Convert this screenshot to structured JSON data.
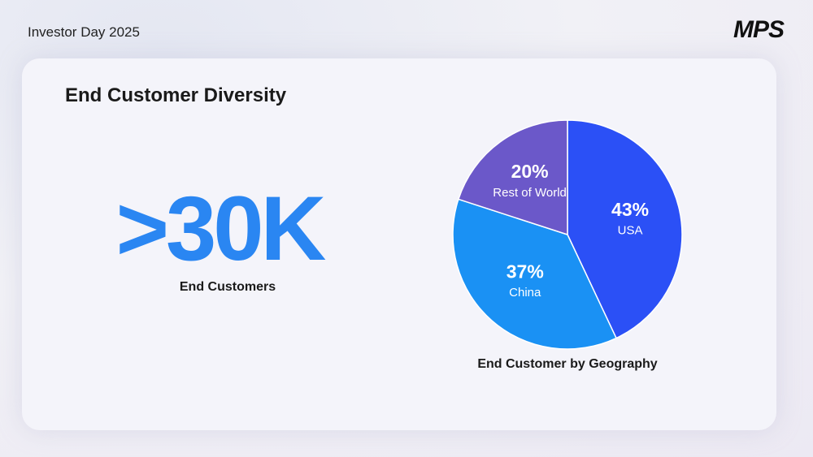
{
  "header": {
    "event": "Investor Day 2025",
    "logo": "MPS"
  },
  "slide": {
    "title": "End Customer Diversity",
    "stat": ">30K",
    "stat_label": "End Customers"
  },
  "chart_data": {
    "type": "pie",
    "title": "End Customer by Geography",
    "categories": [
      "USA",
      "China",
      "Rest of World"
    ],
    "values": [
      43,
      37,
      20
    ],
    "value_labels": [
      "43%",
      "37%",
      "20%"
    ],
    "colors": [
      "#2b50f6",
      "#1a91f4",
      "#6b58c9"
    ]
  }
}
